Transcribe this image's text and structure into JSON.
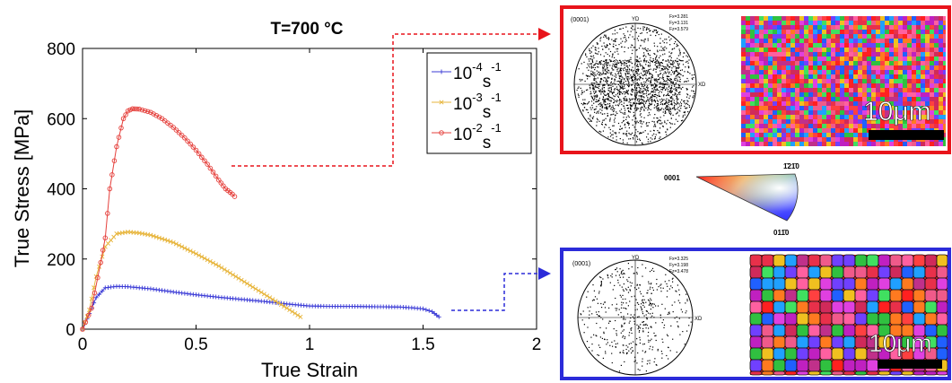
{
  "chart_data": {
    "type": "line",
    "title": "T=700 °C",
    "xlabel": "True Strain",
    "ylabel": "True Stress  [MPa]",
    "xlim": [
      0,
      2
    ],
    "ylim": [
      0,
      800
    ],
    "xticks": [
      "0",
      "0.5",
      "1",
      "1.5",
      "2"
    ],
    "yticks": [
      "0",
      "200",
      "400",
      "600",
      "800"
    ],
    "grid": false,
    "legend_position": "top-right",
    "series": [
      {
        "name": "10^-4 s^-1",
        "legend_base": "10",
        "legend_exp": "-4",
        "legend_unit": "s",
        "legend_unit_exp": "-1",
        "color": "#3b3bd6",
        "marker": "plus",
        "x": [
          0,
          0.03,
          0.06,
          0.1,
          0.15,
          0.2,
          0.3,
          0.4,
          0.5,
          0.6,
          0.7,
          0.8,
          0.9,
          1.0,
          1.1,
          1.2,
          1.3,
          1.4,
          1.45,
          1.5,
          1.54,
          1.57
        ],
        "y": [
          0,
          45,
          90,
          118,
          122,
          121,
          115,
          106,
          98,
          91,
          85,
          79,
          72,
          66,
          65,
          65,
          64,
          63,
          61,
          58,
          50,
          35
        ]
      },
      {
        "name": "10^-3 s^-1",
        "legend_base": "10",
        "legend_exp": "-3",
        "legend_unit": "s",
        "legend_unit_exp": "-1",
        "color": "#e7b53c",
        "marker": "x",
        "x": [
          0,
          0.03,
          0.06,
          0.1,
          0.15,
          0.2,
          0.25,
          0.3,
          0.4,
          0.5,
          0.6,
          0.7,
          0.8,
          0.9,
          0.96
        ],
        "y": [
          0,
          55,
          150,
          235,
          272,
          277,
          274,
          268,
          247,
          215,
          180,
          140,
          100,
          60,
          35
        ]
      },
      {
        "name": "10^-2 s^-1",
        "legend_base": "10",
        "legend_exp": "-2",
        "legend_unit": "s",
        "legend_unit_exp": "-1",
        "color": "#e5403c",
        "marker": "circle",
        "x": [
          0,
          0.04,
          0.08,
          0.1,
          0.12,
          0.15,
          0.18,
          0.2,
          0.22,
          0.25,
          0.3,
          0.35,
          0.4,
          0.45,
          0.5,
          0.55,
          0.6,
          0.63,
          0.66,
          0.67
        ],
        "y": [
          0,
          60,
          190,
          260,
          400,
          520,
          600,
          622,
          628,
          627,
          618,
          600,
          575,
          545,
          510,
          470,
          425,
          400,
          385,
          378
        ]
      }
    ]
  },
  "pole_figures": {
    "top": {
      "plane": "(0001)",
      "axis_y": "YD",
      "axis_x": "XD",
      "f1": "Fx=3.281",
      "f2": "Fy=3.131",
      "f3": "Fz=3.579"
    },
    "bottom": {
      "plane": "(0001)",
      "axis_y": "YD",
      "axis_x": "XD",
      "f1": "Fx=3.325",
      "f2": "Fy=3.198",
      "f3": "Fz=3.478"
    }
  },
  "ebsd_maps": {
    "top_scale": "10μm",
    "bottom_scale": "10μm"
  },
  "ipf_key": {
    "corner_0001": "0001",
    "corner_top": "1̄21̄0",
    "corner_bottom": "011̄0"
  },
  "colors": {
    "frame_top": "#e8141b",
    "frame_bottom": "#2b2bd9"
  }
}
